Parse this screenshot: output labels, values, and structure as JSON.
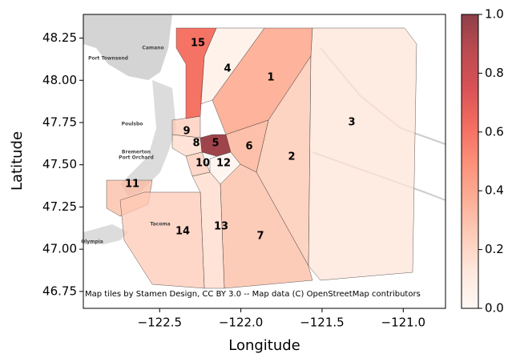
{
  "chart_data": {
    "type": "choropleth",
    "colormap": "Reds",
    "xlabel": "Longitude",
    "ylabel": "Latitude",
    "attribution": "Map tiles by Stamen Design, CC BY 3.0 -- Map data (C) OpenStreetMap contributors",
    "xlim": [
      -122.97,
      -120.74
    ],
    "ylim": [
      46.65,
      48.39
    ],
    "xticks": [
      {
        "value": -122.5,
        "label": "−122.5"
      },
      {
        "value": -122.0,
        "label": "−122.0"
      },
      {
        "value": -121.5,
        "label": "−121.5"
      },
      {
        "value": -121.0,
        "label": "−121.0"
      }
    ],
    "yticks": [
      {
        "value": 46.75,
        "label": "46.75"
      },
      {
        "value": 47.0,
        "label": "47.00"
      },
      {
        "value": 47.25,
        "label": "47.25"
      },
      {
        "value": 47.5,
        "label": "47.50"
      },
      {
        "value": 47.75,
        "label": "47.75"
      },
      {
        "value": 48.0,
        "label": "48.00"
      },
      {
        "value": 48.25,
        "label": "48.25"
      }
    ],
    "clim": [
      0,
      1
    ],
    "cticks": [
      {
        "value": 0,
        "label": "0.0"
      },
      {
        "value": 0.2,
        "label": "0.2"
      },
      {
        "value": 0.4,
        "label": "0.4"
      },
      {
        "value": 0.6,
        "label": "0.6"
      },
      {
        "value": 0.8,
        "label": "0.8"
      },
      {
        "value": 1,
        "label": "1.0"
      }
    ],
    "regions": [
      {
        "label": "1",
        "value": 0.35
      },
      {
        "label": "2",
        "value": 0.22
      },
      {
        "label": "3",
        "value": 0.1
      },
      {
        "label": "4",
        "value": 0.05
      },
      {
        "label": "5",
        "value": 0.95
      },
      {
        "label": "6",
        "value": 0.3
      },
      {
        "label": "7",
        "value": 0.25
      },
      {
        "label": "8",
        "value": 0.15
      },
      {
        "label": "9",
        "value": 0.2
      },
      {
        "label": "10",
        "value": 0.2
      },
      {
        "label": "11",
        "value": 0.25
      },
      {
        "label": "12",
        "value": 0.02
      },
      {
        "label": "13",
        "value": 0.15
      },
      {
        "label": "14",
        "value": 0.2
      },
      {
        "label": "15",
        "value": 0.6
      }
    ],
    "places": [
      "Port Townsend",
      "Camano",
      "Poulsbo",
      "Bremerton",
      "Port Orchard",
      "Tacoma",
      "Olympia"
    ]
  }
}
